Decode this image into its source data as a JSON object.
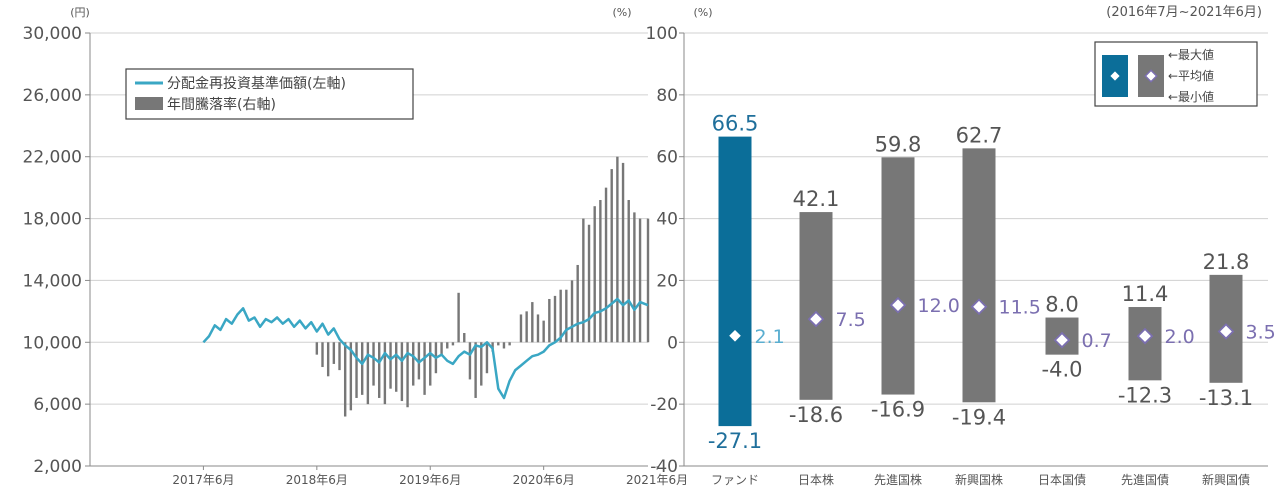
{
  "chart_data": [
    {
      "type": "line",
      "y_left_unit": "(円)",
      "y_right_unit": "(%)",
      "y_left_ticks": [
        "30,000",
        "26,000",
        "22,000",
        "18,000",
        "14,000",
        "10,000",
        "6,000",
        "2,000"
      ],
      "y_left_range": [
        2000,
        30000
      ],
      "y_right_range": [
        -40,
        100
      ],
      "x_tick_labels": [
        "2017年6月",
        "2018年6月",
        "2019年6月",
        "2020年6月",
        "2021年6月"
      ],
      "x_range": [
        2016.5,
        2021.42
      ],
      "legend": {
        "placement": "top-left",
        "line_label": "分配金再投資基準価額(左軸)",
        "bar_label": "年間騰落率(右軸)"
      },
      "colors": {
        "line": "#3aa7c4",
        "bar": "#777777"
      },
      "series": [
        {
          "name": "分配金再投資基準価額(左軸)",
          "type": "line",
          "axis": "left",
          "x": [
            2017.5,
            2017.55,
            2017.6,
            2017.65,
            2017.7,
            2017.75,
            2017.8,
            2017.85,
            2017.9,
            2017.95,
            2018.0,
            2018.05,
            2018.1,
            2018.15,
            2018.2,
            2018.25,
            2018.3,
            2018.35,
            2018.4,
            2018.45,
            2018.5,
            2018.55,
            2018.6,
            2018.65,
            2018.7,
            2018.75,
            2018.8,
            2018.85,
            2018.9,
            2018.95,
            2019.0,
            2019.05,
            2019.1,
            2019.15,
            2019.2,
            2019.25,
            2019.3,
            2019.35,
            2019.4,
            2019.45,
            2019.5,
            2019.55,
            2019.6,
            2019.65,
            2019.7,
            2019.75,
            2019.8,
            2019.85,
            2019.9,
            2019.95,
            2020.0,
            2020.05,
            2020.1,
            2020.15,
            2020.2,
            2020.25,
            2020.3,
            2020.35,
            2020.4,
            2020.45,
            2020.5,
            2020.55,
            2020.6,
            2020.65,
            2020.7,
            2020.75,
            2020.8,
            2020.85,
            2020.9,
            2020.95,
            2021.0,
            2021.05,
            2021.1,
            2021.15,
            2021.2,
            2021.25,
            2021.3,
            2021.35,
            2021.42
          ],
          "y": [
            10000,
            10400,
            11100,
            10800,
            11500,
            11200,
            11800,
            12200,
            11400,
            11600,
            11000,
            11500,
            11300,
            11600,
            11200,
            11500,
            11000,
            11400,
            10900,
            11300,
            10700,
            11200,
            10500,
            10900,
            10200,
            9800,
            9500,
            9000,
            8600,
            9200,
            9000,
            8700,
            9300,
            8900,
            9200,
            8800,
            9300,
            9100,
            8700,
            9000,
            9300,
            9000,
            9200,
            8800,
            8600,
            9100,
            9400,
            9200,
            9800,
            9700,
            10000,
            9600,
            7000,
            6400,
            7500,
            8200,
            8500,
            8800,
            9100,
            9200,
            9400,
            9800,
            10000,
            10300,
            10800,
            11000,
            11200,
            11300,
            11500,
            11900,
            12000,
            12200,
            12500,
            12800,
            12400,
            12700,
            12100,
            12600,
            12400
          ]
        },
        {
          "name": "年間騰落率(右軸)",
          "type": "bar",
          "axis": "right",
          "x": [
            2018.5,
            2018.55,
            2018.6,
            2018.65,
            2018.7,
            2018.75,
            2018.8,
            2018.85,
            2018.9,
            2018.95,
            2019.0,
            2019.05,
            2019.1,
            2019.15,
            2019.2,
            2019.25,
            2019.3,
            2019.35,
            2019.4,
            2019.45,
            2019.5,
            2019.55,
            2019.6,
            2019.65,
            2019.7,
            2019.75,
            2019.8,
            2019.85,
            2019.9,
            2019.95,
            2020.0,
            2020.05,
            2020.1,
            2020.15,
            2020.2,
            2020.25,
            2020.3,
            2020.35,
            2020.4,
            2020.45,
            2020.5,
            2020.55,
            2020.6,
            2020.65,
            2020.7,
            2020.75,
            2020.8,
            2020.85,
            2020.9,
            2020.95,
            2021.0,
            2021.05,
            2021.1,
            2021.15,
            2021.2,
            2021.25,
            2021.3,
            2021.35,
            2021.42
          ],
          "values": [
            -4,
            -8,
            -11,
            -7,
            -9,
            -24,
            -22,
            -18,
            -17,
            -20,
            -14,
            -18,
            -20,
            -15,
            -16,
            -19,
            -21,
            -14,
            -12,
            -17,
            -14,
            -10,
            -4,
            -2,
            -1,
            16,
            3,
            -12,
            -18,
            -14,
            -10,
            -3,
            -1,
            -2,
            -1,
            0,
            9,
            10,
            13,
            9,
            7,
            14,
            15,
            17,
            17,
            20,
            25,
            40,
            38,
            44,
            46,
            50,
            56,
            60,
            58,
            46,
            42,
            40,
            40
          ]
        }
      ]
    },
    {
      "type": "bar",
      "period": "(2016年7月~2021年6月)",
      "y_unit": "(%)",
      "ylim": [
        -40,
        100
      ],
      "y_ticks": [
        100,
        80,
        60,
        40,
        20,
        0,
        -20,
        -40
      ],
      "categories": [
        "ファンド",
        "日本株",
        "先進国株",
        "新興国株",
        "日本国債",
        "先進国債",
        "新興国債"
      ],
      "max": [
        66.5,
        42.1,
        59.8,
        62.7,
        8.0,
        11.4,
        21.8
      ],
      "avg": [
        2.1,
        7.5,
        12.0,
        11.5,
        0.7,
        2.0,
        3.5
      ],
      "min": [
        -27.1,
        -18.6,
        -16.9,
        -19.4,
        -4.0,
        -12.3,
        -13.1
      ],
      "max_labels": [
        "66.5",
        "42.1",
        "59.8",
        "62.7",
        "8.0",
        "11.4",
        "21.8"
      ],
      "avg_labels": [
        "2.1",
        "7.5",
        "12.0",
        "11.5",
        "0.7",
        "2.0",
        "3.5"
      ],
      "min_labels": [
        "-27.1",
        "-18.6",
        "-16.9",
        "-19.4",
        "-4.0",
        "-12.3",
        "-13.1"
      ],
      "legend": {
        "placement": "top-right",
        "max_label": "←最大値",
        "avg_label": "←平均値",
        "min_label": "←最小値"
      },
      "colors": {
        "fund": "#0b6e99",
        "others": "#777777",
        "avg_text": "#7b6fb0",
        "fund_avg_text": "#5aaed0"
      }
    }
  ]
}
